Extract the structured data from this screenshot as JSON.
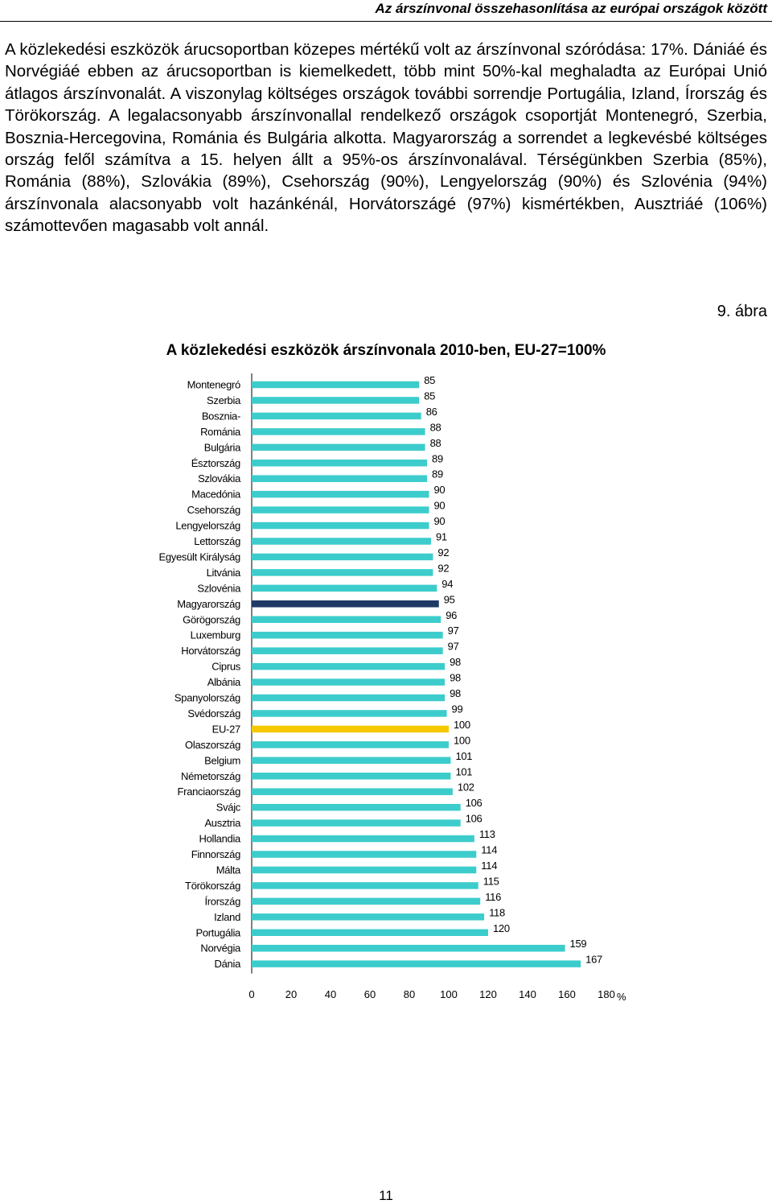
{
  "header": {
    "title": "Az árszínvonal összehasonlítása az európai országok között"
  },
  "body": {
    "paragraph": "A közlekedési eszközök árucsoportban közepes mértékű volt az árszínvonal szóródása: 17%. Dániáé és Norvégiáé ebben az árucsoportban is kiemelkedett, több mint 50%-kal meghaladta az Európai Unió átlagos árszínvonalát. A viszonylag költséges országok további sorrendje Portugália, Izland, Írország és Törökország. A legalacsonyabb árszínvonallal rendelkező országok csoportját Montenegró, Szerbia, Bosznia-Hercegovina, Románia és Bulgária alkotta. Magyarország a sorrendet a legkevésbé költséges ország felől számítva a 15. helyen állt a 95%-os árszínvonalával. Térségünkben Szerbia (85%), Románia (88%), Szlovákia (89%), Csehország (90%), Lengyelország (90%) és Szlovénia (94%) árszínvonala alacsonyabb volt hazánkénál, Horvátországé (97%) kismértékben, Ausztriáé (106%) számottevően magasabb volt annál."
  },
  "figure": {
    "number": "9. ábra",
    "title": "A közlekedési eszközök árszínvonala 2010-ben, EU-27=100%"
  },
  "colors": {
    "default_bar": "#3dcccc",
    "hungary_bar": "#1f3864",
    "eu_bar": "#f5c800"
  },
  "chart_data": {
    "type": "bar",
    "orientation": "horizontal",
    "title": "A közlekedési eszközök árszínvonala 2010-ben, EU-27=100%",
    "xlabel": "%",
    "ylabel": "",
    "xlim": [
      0,
      180
    ],
    "xticks": [
      0,
      20,
      40,
      60,
      80,
      100,
      120,
      140,
      160,
      180
    ],
    "grid": false,
    "categories": [
      "Montenegró",
      "Szerbia",
      "Bosznia-",
      "Románia",
      "Bulgária",
      "Észtország",
      "Szlovákia",
      "Macedónia",
      "Csehország",
      "Lengyelország",
      "Lettország",
      "Egyesült Királyság",
      "Litvánia",
      "Szlovénia",
      "Magyarország",
      "Görögország",
      "Luxemburg",
      "Horvátország",
      "Ciprus",
      "Albánia",
      "Spanyolország",
      "Svédország",
      "EU-27",
      "Olaszország",
      "Belgium",
      "Németország",
      "Franciaország",
      "Svájc",
      "Ausztria",
      "Hollandia",
      "Finnország",
      "Málta",
      "Törökország",
      "Írország",
      "Izland",
      "Portugália",
      "Norvégia",
      "Dánia"
    ],
    "values": [
      85,
      85,
      86,
      88,
      88,
      89,
      89,
      90,
      90,
      90,
      91,
      92,
      92,
      94,
      95,
      96,
      97,
      97,
      98,
      98,
      98,
      99,
      100,
      100,
      101,
      101,
      102,
      106,
      106,
      113,
      114,
      114,
      115,
      116,
      118,
      120,
      159,
      167
    ],
    "highlight": {
      "Magyarország": "hungary_bar",
      "EU-27": "eu_bar"
    }
  },
  "footer": {
    "page_number": "11"
  }
}
